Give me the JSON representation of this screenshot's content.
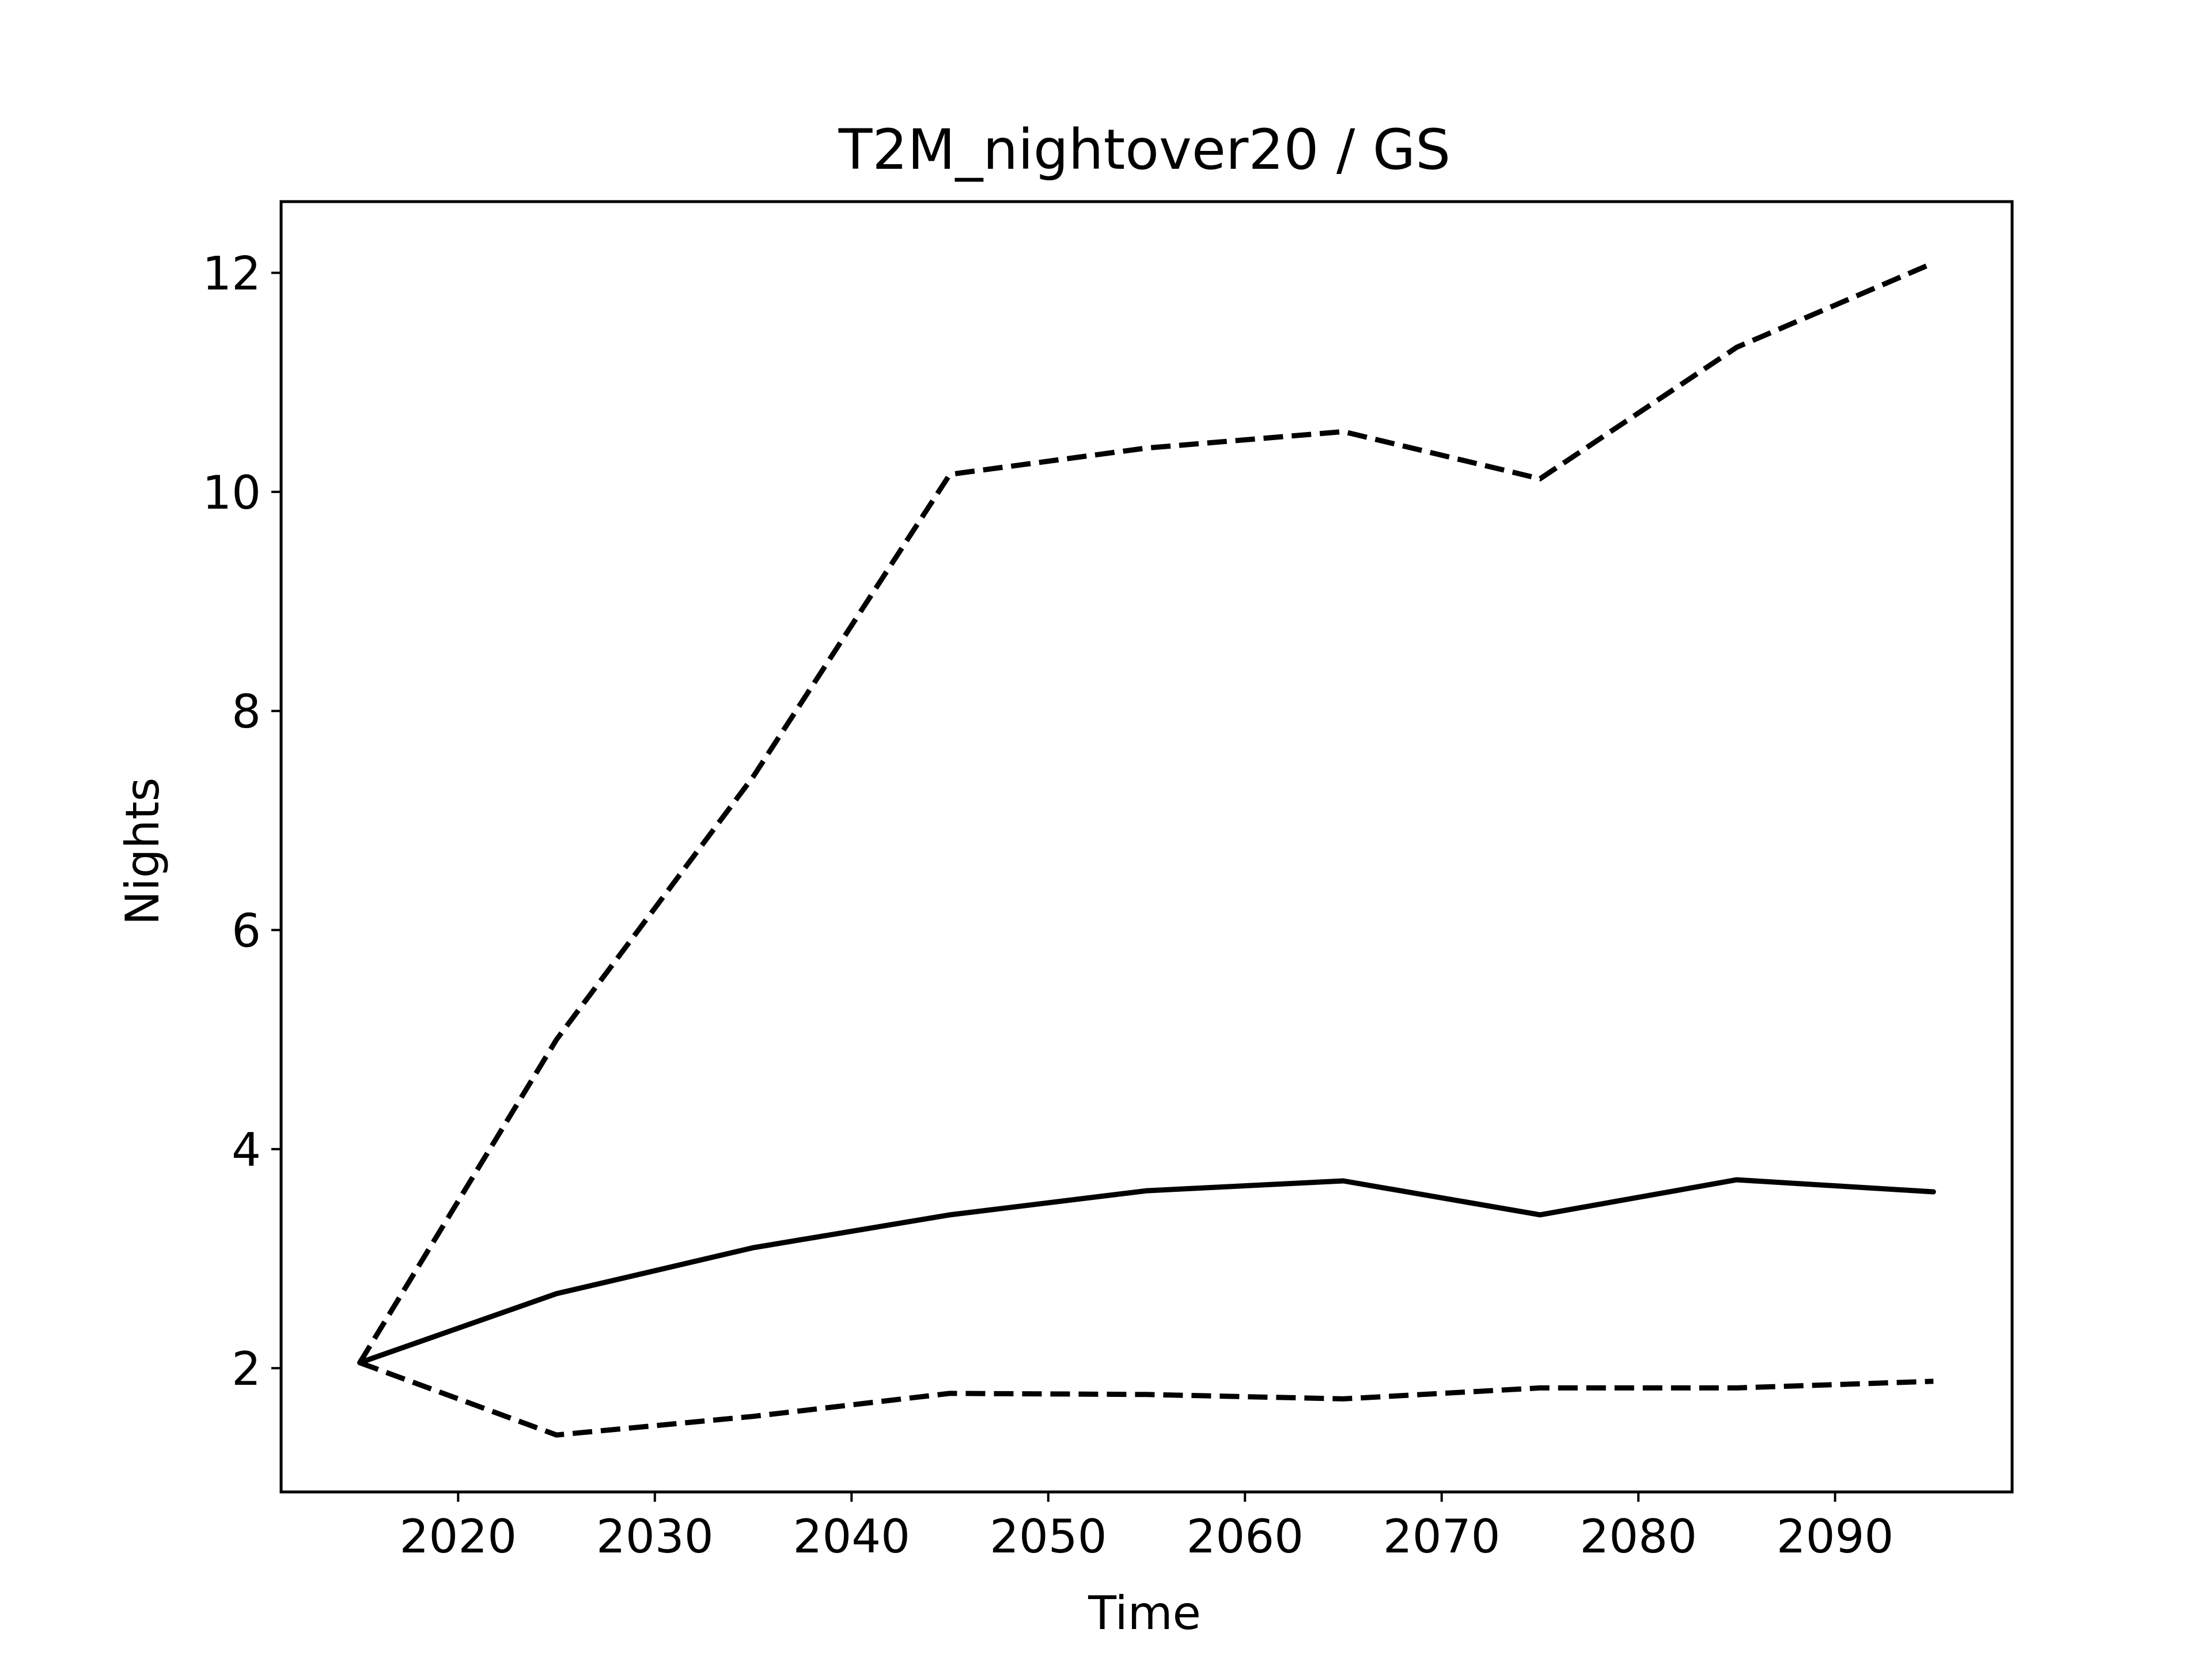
{
  "chart_data": {
    "type": "line",
    "title": "T2M_nightover20 / GS",
    "xlabel": "Time",
    "ylabel": "Nights",
    "x": [
      2015,
      2025,
      2035,
      2045,
      2055,
      2065,
      2075,
      2085,
      2095
    ],
    "xlim": [
      2011,
      2099
    ],
    "ylim": [
      0.87,
      12.65
    ],
    "xticks": [
      2020,
      2030,
      2040,
      2050,
      2060,
      2070,
      2080,
      2090
    ],
    "yticks": [
      2,
      4,
      6,
      8,
      10,
      12
    ],
    "grid": false,
    "legend": "none",
    "series": [
      {
        "style": "solid",
        "color": "#000000",
        "values": [
          2.05,
          2.68,
          3.1,
          3.4,
          3.62,
          3.71,
          3.4,
          3.72,
          3.61
        ]
      },
      {
        "style": "dashed",
        "color": "#000000",
        "values": [
          2.05,
          5.0,
          7.4,
          10.16,
          10.4,
          10.55,
          10.12,
          11.32,
          12.09
        ]
      },
      {
        "style": "dashed",
        "color": "#000000",
        "values": [
          2.05,
          1.39,
          1.56,
          1.77,
          1.76,
          1.72,
          1.82,
          1.82,
          1.88
        ]
      }
    ]
  }
}
